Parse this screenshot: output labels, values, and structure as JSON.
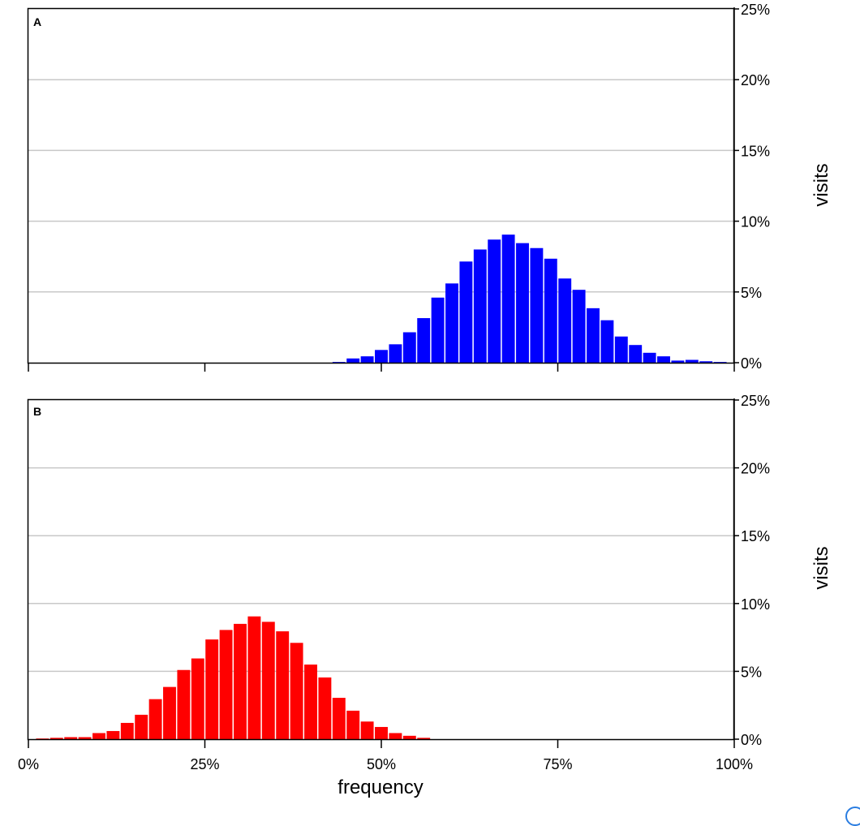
{
  "chart_data": [
    {
      "type": "bar",
      "panel_label": "A",
      "color": "#0000ff",
      "x": [
        2,
        4,
        6,
        8,
        10,
        12,
        14,
        16,
        18,
        20,
        22,
        24,
        26,
        28,
        30,
        32,
        34,
        36,
        38,
        40,
        42,
        44,
        46,
        48,
        50,
        52,
        54,
        56,
        58,
        60,
        62,
        64,
        66,
        68,
        70,
        72,
        74,
        76,
        78,
        80,
        82,
        84,
        86,
        88,
        90,
        92,
        94,
        96,
        98
      ],
      "values": [
        0,
        0,
        0,
        0,
        0,
        0,
        0,
        0,
        0,
        0,
        0,
        0,
        0,
        0,
        0,
        0,
        0,
        0,
        0,
        0,
        0,
        0.05,
        0.3,
        0.45,
        0.9,
        1.3,
        2.15,
        3.15,
        4.6,
        5.6,
        7.15,
        8.0,
        8.7,
        9.05,
        8.45,
        8.1,
        7.35,
        5.95,
        5.15,
        3.85,
        3.0,
        1.85,
        1.25,
        0.7,
        0.45,
        0.15,
        0.2,
        0.1,
        0.05
      ],
      "xlim": [
        0,
        100
      ],
      "ylim": [
        0,
        25
      ],
      "yticks": [
        "0%",
        "5%",
        "10%",
        "15%",
        "20%",
        "25%"
      ],
      "ylabel": "visits",
      "grid": true
    },
    {
      "type": "bar",
      "panel_label": "B",
      "color": "#ff0000",
      "x": [
        2,
        4,
        6,
        8,
        10,
        12,
        14,
        16,
        18,
        20,
        22,
        24,
        26,
        28,
        30,
        32,
        34,
        36,
        38,
        40,
        42,
        44,
        46,
        48,
        50,
        52,
        54,
        56,
        58,
        60,
        62,
        64,
        66,
        68,
        70,
        72,
        74,
        76,
        78,
        80,
        82,
        84,
        86,
        88,
        90,
        92,
        94,
        96,
        98
      ],
      "values": [
        0.05,
        0.1,
        0.15,
        0.15,
        0.45,
        0.6,
        1.2,
        1.8,
        2.95,
        3.85,
        5.1,
        5.95,
        7.35,
        8.05,
        8.5,
        9.05,
        8.65,
        7.95,
        7.1,
        5.5,
        4.55,
        3.05,
        2.1,
        1.3,
        0.9,
        0.45,
        0.25,
        0.1,
        0,
        0,
        0,
        0,
        0,
        0,
        0,
        0,
        0,
        0,
        0,
        0,
        0,
        0,
        0,
        0,
        0,
        0,
        0,
        0,
        0
      ],
      "xlim": [
        0,
        100
      ],
      "ylim": [
        0,
        25
      ],
      "yticks": [
        "0%",
        "5%",
        "10%",
        "15%",
        "20%",
        "25%"
      ],
      "xticks": [
        "0%",
        "25%",
        "50%",
        "75%",
        "100%"
      ],
      "xlabel": "frequency",
      "ylabel": "visits",
      "grid": true
    }
  ]
}
